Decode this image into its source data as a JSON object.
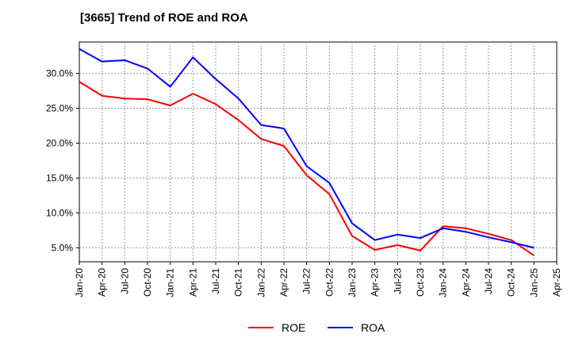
{
  "chart_data": {
    "type": "line",
    "title": "[3665]  Trend of ROE and ROA",
    "xlabel": "",
    "ylabel": "",
    "x_ticks": [
      "Jan-20",
      "Apr-20",
      "Jul-20",
      "Oct-20",
      "Jan-21",
      "Apr-21",
      "Jul-21",
      "Oct-21",
      "Jan-22",
      "Apr-22",
      "Jul-22",
      "Oct-22",
      "Jan-23",
      "Apr-23",
      "Jul-23",
      "Oct-23",
      "Jan-24",
      "Apr-24",
      "Jul-24",
      "Oct-24",
      "Jan-25",
      "Apr-25"
    ],
    "y_ticks": [
      "5.0%",
      "10.0%",
      "15.0%",
      "20.0%",
      "25.0%",
      "30.0%"
    ],
    "y_tick_values": [
      5,
      10,
      15,
      20,
      25,
      30
    ],
    "ylim": [
      3,
      34.5
    ],
    "grid": true,
    "legend_position": "bottom-center",
    "series": [
      {
        "name": "ROE",
        "color": "#ff0000",
        "values": [
          28.8,
          26.8,
          26.4,
          26.3,
          25.4,
          27.1,
          25.6,
          23.3,
          20.6,
          19.6,
          15.4,
          12.7,
          6.7,
          4.7,
          5.4,
          4.6,
          8.1,
          7.8,
          7.0,
          6.1,
          3.9
        ]
      },
      {
        "name": "ROA",
        "color": "#0000ff",
        "values": [
          33.5,
          31.7,
          31.9,
          30.7,
          28.1,
          32.3,
          29.2,
          26.4,
          22.6,
          22.1,
          16.7,
          14.3,
          8.5,
          6.1,
          6.9,
          6.4,
          7.8,
          7.3,
          6.5,
          5.8,
          5.0
        ]
      }
    ]
  }
}
